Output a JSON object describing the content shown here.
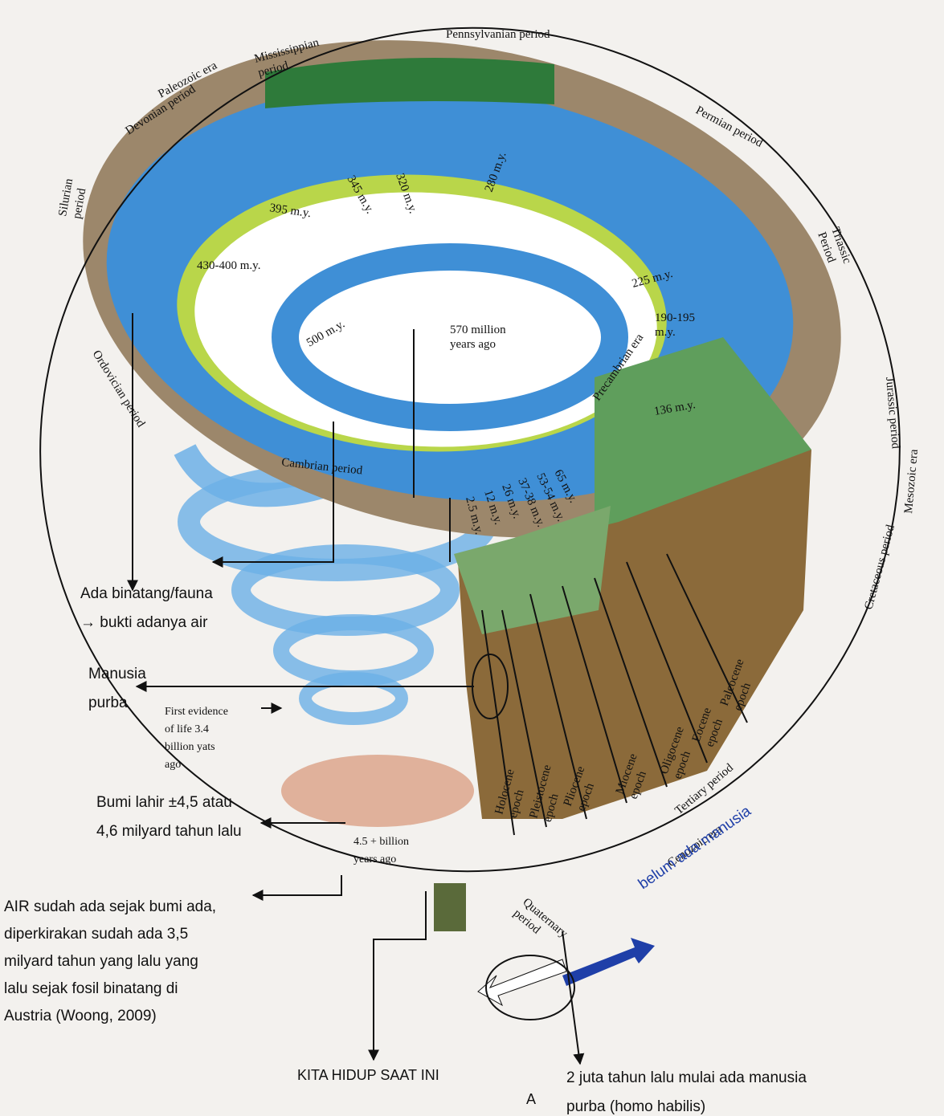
{
  "labels": {
    "periods": [
      [
        "Paleozoic era"
      ],
      [
        "Mississippian",
        "period"
      ],
      [
        "Pennsylvanian period"
      ],
      [
        "Permian period"
      ],
      [
        "Devonian period"
      ],
      [
        "Silurian",
        "period"
      ],
      [
        "Ordovician period"
      ],
      [
        "Cambrian period"
      ],
      [
        "Precambrian era"
      ],
      [
        "Triassic",
        "Period"
      ],
      [
        "Jurassic period"
      ],
      [
        "Mesozoic era"
      ],
      [
        "Cretaceous period"
      ],
      [
        "Tertiary period"
      ],
      [
        "Cenozoic era"
      ],
      [
        "Quaternary",
        "period"
      ]
    ],
    "ages": [
      [
        "395 m.y."
      ],
      [
        "345 m.y."
      ],
      [
        "320 m.y."
      ],
      [
        "280 m.y."
      ],
      [
        "430-400 m.y."
      ],
      [
        "225 m.y."
      ],
      [
        "190-195",
        "m.y."
      ],
      [
        "136 m.y."
      ],
      [
        "500 m.y."
      ],
      [
        "570 million",
        "years ago"
      ],
      [
        "65 m.y."
      ],
      [
        "53-54 m.y."
      ],
      [
        "37-38 m.y."
      ],
      [
        "26 m.y."
      ],
      [
        "12 m.y."
      ],
      [
        "2.5 m.y."
      ],
      [
        "First evidence",
        "of life   3.4",
        "billion yats",
        "ago"
      ],
      [
        "4.5 + billion",
        "years ago"
      ]
    ],
    "epochs": [
      [
        "Paleocene",
        "epoch"
      ],
      [
        "Eocene",
        "epoch"
      ],
      [
        "Oligocene",
        "epoch"
      ],
      [
        "Miocene",
        "epoch"
      ],
      [
        "Pliocene",
        "epoch"
      ],
      [
        "Pleistocene",
        "epoch"
      ],
      [
        "Holocene",
        "epoch"
      ]
    ],
    "notes": [
      [
        "Ada binatang/fauna",
        "→ bukti adanya air"
      ],
      [
        "Manusia",
        "purba"
      ],
      [
        "Bumi lahir ±4,5 atau",
        "4,6 milyard tahun lalu"
      ],
      [
        "AIR sudah ada sejak bumi ada,",
        "diperkirakan sudah ada 3,5",
        "milyard tahun yang lalu yang",
        "lalu sejak fosil binatang di",
        "Austria (Woong, 2009)"
      ],
      [
        "KITA HIDUP SAAT INI"
      ],
      [
        "A"
      ],
      [
        "2 juta tahun lalu mulai ada manusia",
        "purba (homo habilis)"
      ],
      [
        "belum ada manusia"
      ]
    ]
  }
}
